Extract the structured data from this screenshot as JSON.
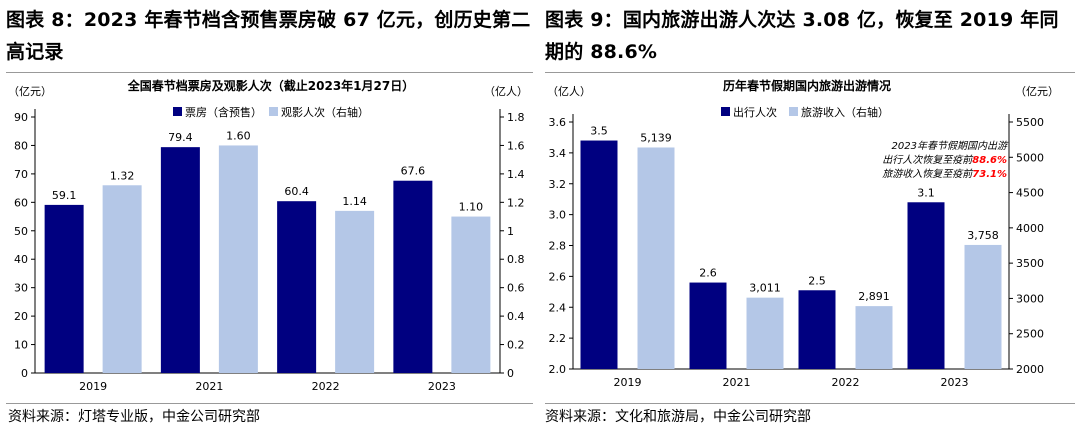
{
  "figures": {
    "left_title": "图表 8：2023 年春节档含预售票房破 67 亿元，创历史第二高记录",
    "right_title": "图表 9：国内旅游出游人次达 3.08 亿，恢复至 2019 年同期的 88.6%",
    "left_source": "资料来源：灯塔专业版，中金公司研究部",
    "right_source": "资料来源：文化和旅游局，中金公司研究部"
  },
  "colors": {
    "dark": "#000080",
    "light": "#B4C7E7"
  },
  "chart_data": [
    {
      "type": "bar",
      "title": "全国春节档票房及观影人次（截止2023年1月27日）",
      "categories": [
        "2019",
        "2021",
        "2022",
        "2023"
      ],
      "series": [
        {
          "name": "票房（含预售）",
          "axis": "left",
          "values": [
            59.1,
            79.4,
            60.4,
            67.6
          ],
          "labels": [
            "59.1",
            "79.4",
            "60.4",
            "67.6"
          ]
        },
        {
          "name": "观影人次（右轴）",
          "axis": "right",
          "values": [
            1.32,
            1.6,
            1.14,
            1.1
          ],
          "labels": [
            "1.32",
            "1.60",
            "1.14",
            "1.10"
          ]
        }
      ],
      "left_unit": "（亿元）",
      "right_unit": "（亿人）",
      "ylim": [
        0,
        90
      ],
      "yticks": [
        "0",
        "10",
        "20",
        "30",
        "40",
        "50",
        "60",
        "70",
        "80",
        "90"
      ],
      "y2lim": [
        0,
        1.8
      ],
      "y2ticks": [
        "0",
        "0.2",
        "0.4",
        "0.6",
        "0.8",
        "1",
        "1.2",
        "1.4",
        "1.6",
        "1.8"
      ]
    },
    {
      "type": "bar",
      "title": "历年春节假期国内旅游出游情况",
      "categories": [
        "2019",
        "2021",
        "2022",
        "2023"
      ],
      "series": [
        {
          "name": "出行人次",
          "axis": "left",
          "values": [
            3.48,
            2.56,
            2.51,
            3.08
          ],
          "labels": [
            "3.5",
            "2.6",
            "2.5",
            "3.1"
          ]
        },
        {
          "name": "旅游收入（右轴）",
          "axis": "right",
          "values": [
            5139,
            3011,
            2891,
            3758
          ],
          "labels": [
            "5,139",
            "3,011",
            "2,891",
            "3,758"
          ]
        }
      ],
      "left_unit": "（亿人）",
      "right_unit": "（亿元）",
      "ylim": [
        2.0,
        3.6
      ],
      "yticks": [
        "2.0",
        "2.2",
        "2.4",
        "2.6",
        "2.8",
        "3.0",
        "3.2",
        "3.4",
        "3.6"
      ],
      "y2lim": [
        2000,
        5500
      ],
      "y2ticks": [
        "2000",
        "2500",
        "3000",
        "3500",
        "4000",
        "4500",
        "5000",
        "5500"
      ],
      "annotation": {
        "line1": "2023年春节假期国内出游",
        "line2_text": "出行人次恢复至疫前",
        "line2_value": "88.6%",
        "line3_text": "旅游收入恢复至疫前",
        "line3_value": "73.1%"
      }
    }
  ]
}
